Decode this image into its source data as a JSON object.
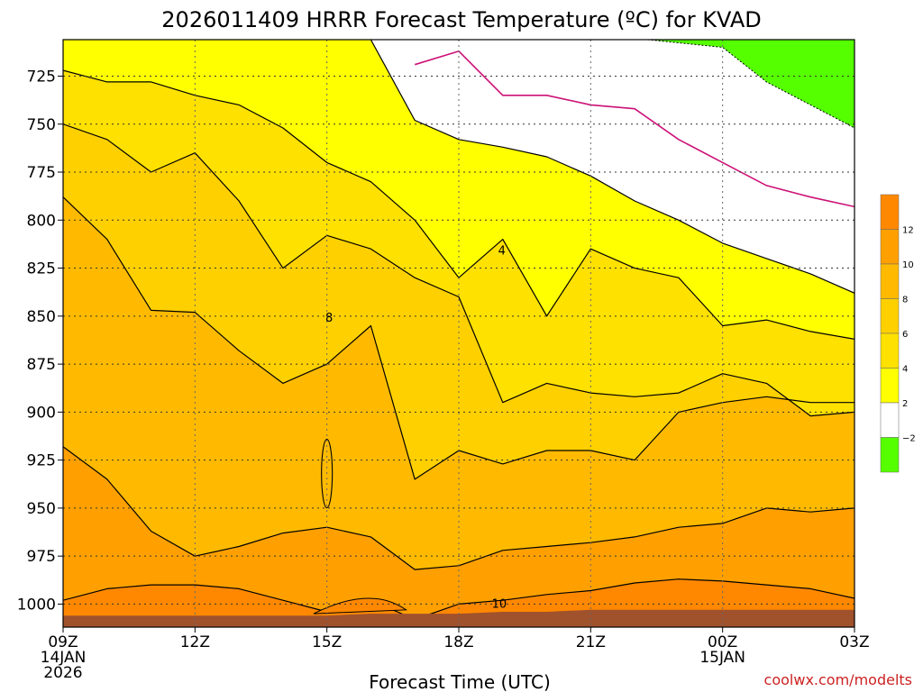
{
  "chart_data": {
    "type": "contour",
    "title": "2026011409 HRRR Forecast Temperature (ºC) for KVAD",
    "xlabel": "Forecast Time (UTC)",
    "ylabel": "",
    "credit": "coolwx.com/modelts",
    "x_hours": [
      0,
      1,
      2,
      3,
      4,
      5,
      6,
      7,
      8,
      9,
      10,
      11,
      12,
      13,
      14,
      15,
      16,
      17,
      18
    ],
    "xlim": [
      0,
      18
    ],
    "x_ticks": [
      {
        "hour": 0,
        "lines": [
          "09Z",
          "14JAN",
          "2026"
        ]
      },
      {
        "hour": 3,
        "lines": [
          "12Z"
        ]
      },
      {
        "hour": 6,
        "lines": [
          "15Z"
        ]
      },
      {
        "hour": 9,
        "lines": [
          "18Z"
        ]
      },
      {
        "hour": 12,
        "lines": [
          "21Z"
        ]
      },
      {
        "hour": 15,
        "lines": [
          "00Z",
          "15JAN"
        ]
      },
      {
        "hour": 18,
        "lines": [
          "03Z"
        ]
      }
    ],
    "y_levels_hpa": [
      725,
      750,
      775,
      800,
      825,
      850,
      875,
      900,
      925,
      950,
      975,
      1000
    ],
    "ylim_hpa": [
      706,
      1012
    ],
    "surface_pressure_hpa": [
      1006,
      1006,
      1006,
      1006,
      1006,
      1006,
      1006,
      1005,
      1005,
      1005,
      1004,
      1004,
      1003,
      1003,
      1003,
      1003,
      1003,
      1003,
      1003
    ],
    "contour_levels": [
      -2,
      2,
      4,
      6,
      8,
      10,
      12
    ],
    "isotherms": [
      {
        "temp": 0,
        "pressure_hpa": [
          null,
          null,
          null,
          null,
          null,
          null,
          null,
          null,
          719,
          712,
          735,
          735,
          740,
          742,
          758,
          770,
          782,
          788,
          793
        ]
      },
      {
        "temp": 2,
        "pressure_hpa": [
          null,
          null,
          null,
          null,
          null,
          null,
          null,
          706,
          748,
          758,
          762,
          767,
          777,
          790,
          800,
          812,
          820,
          828,
          838
        ]
      },
      {
        "temp": 4,
        "pressure_hpa": [
          722,
          728,
          728,
          735,
          740,
          752,
          770,
          780,
          800,
          830,
          810,
          850,
          815,
          825,
          830,
          855,
          852,
          858,
          862
        ]
      },
      {
        "temp": 6,
        "pressure_hpa": [
          750,
          758,
          775,
          765,
          790,
          825,
          808,
          815,
          830,
          840,
          895,
          885,
          890,
          892,
          890,
          880,
          885,
          902,
          900
        ]
      },
      {
        "temp": 8,
        "pressure_hpa": [
          788,
          810,
          847,
          848,
          868,
          885,
          875,
          855,
          935,
          920,
          927,
          920,
          920,
          925,
          900,
          895,
          892,
          895,
          895
        ]
      },
      {
        "temp": 10,
        "pressure_hpa": [
          918,
          935,
          962,
          975,
          970,
          963,
          960,
          965,
          982,
          980,
          972,
          970,
          968,
          965,
          960,
          958,
          950,
          952,
          950
        ]
      },
      {
        "temp": 12,
        "pressure_hpa": [
          998,
          992,
          990,
          990,
          992,
          998,
          1004,
          998,
          1008,
          1000,
          998,
          995,
          993,
          989,
          987,
          988,
          990,
          992,
          997
        ]
      }
    ],
    "contour_labels": [
      {
        "text": "4",
        "hour": 9.98,
        "pressure_hpa": 817
      },
      {
        "text": "8",
        "hour": 6.05,
        "pressure_hpa": 852
      },
      {
        "text": "10",
        "hour": 9.92,
        "pressure_hpa": 1001
      }
    ],
    "colorbar": {
      "entries": [
        {
          "low": -4,
          "high": -2,
          "color": "#55ff00"
        },
        {
          "low": -2,
          "high": 2,
          "color": "#ffffff"
        },
        {
          "low": 2,
          "high": 4,
          "color": "#ffff00"
        },
        {
          "low": 4,
          "high": 6,
          "color": "#ffe100"
        },
        {
          "low": 6,
          "high": 8,
          "color": "#ffd000"
        },
        {
          "low": 8,
          "high": 10,
          "color": "#ffba00"
        },
        {
          "low": 10,
          "high": 12,
          "color": "#ffa000"
        },
        {
          "low": 12,
          "high": 14,
          "color": "#ff8800"
        }
      ],
      "tick_labels": [
        "−2",
        "2",
        "4",
        "6",
        "8",
        "10",
        "12"
      ]
    },
    "colors": {
      "cold_lt_neg2": "#55ff00",
      "band_neg2_2": "#ffffff",
      "band_2_4": "#ffff00",
      "band_4_6": "#ffe100",
      "band_6_8": "#ffd000",
      "band_8_10": "#ffba00",
      "band_10_12": "#ffa000",
      "band_gt_12": "#ff8800",
      "freezing_line": "#cc1177",
      "ground": "#a0522d",
      "grid": "#666666"
    }
  }
}
